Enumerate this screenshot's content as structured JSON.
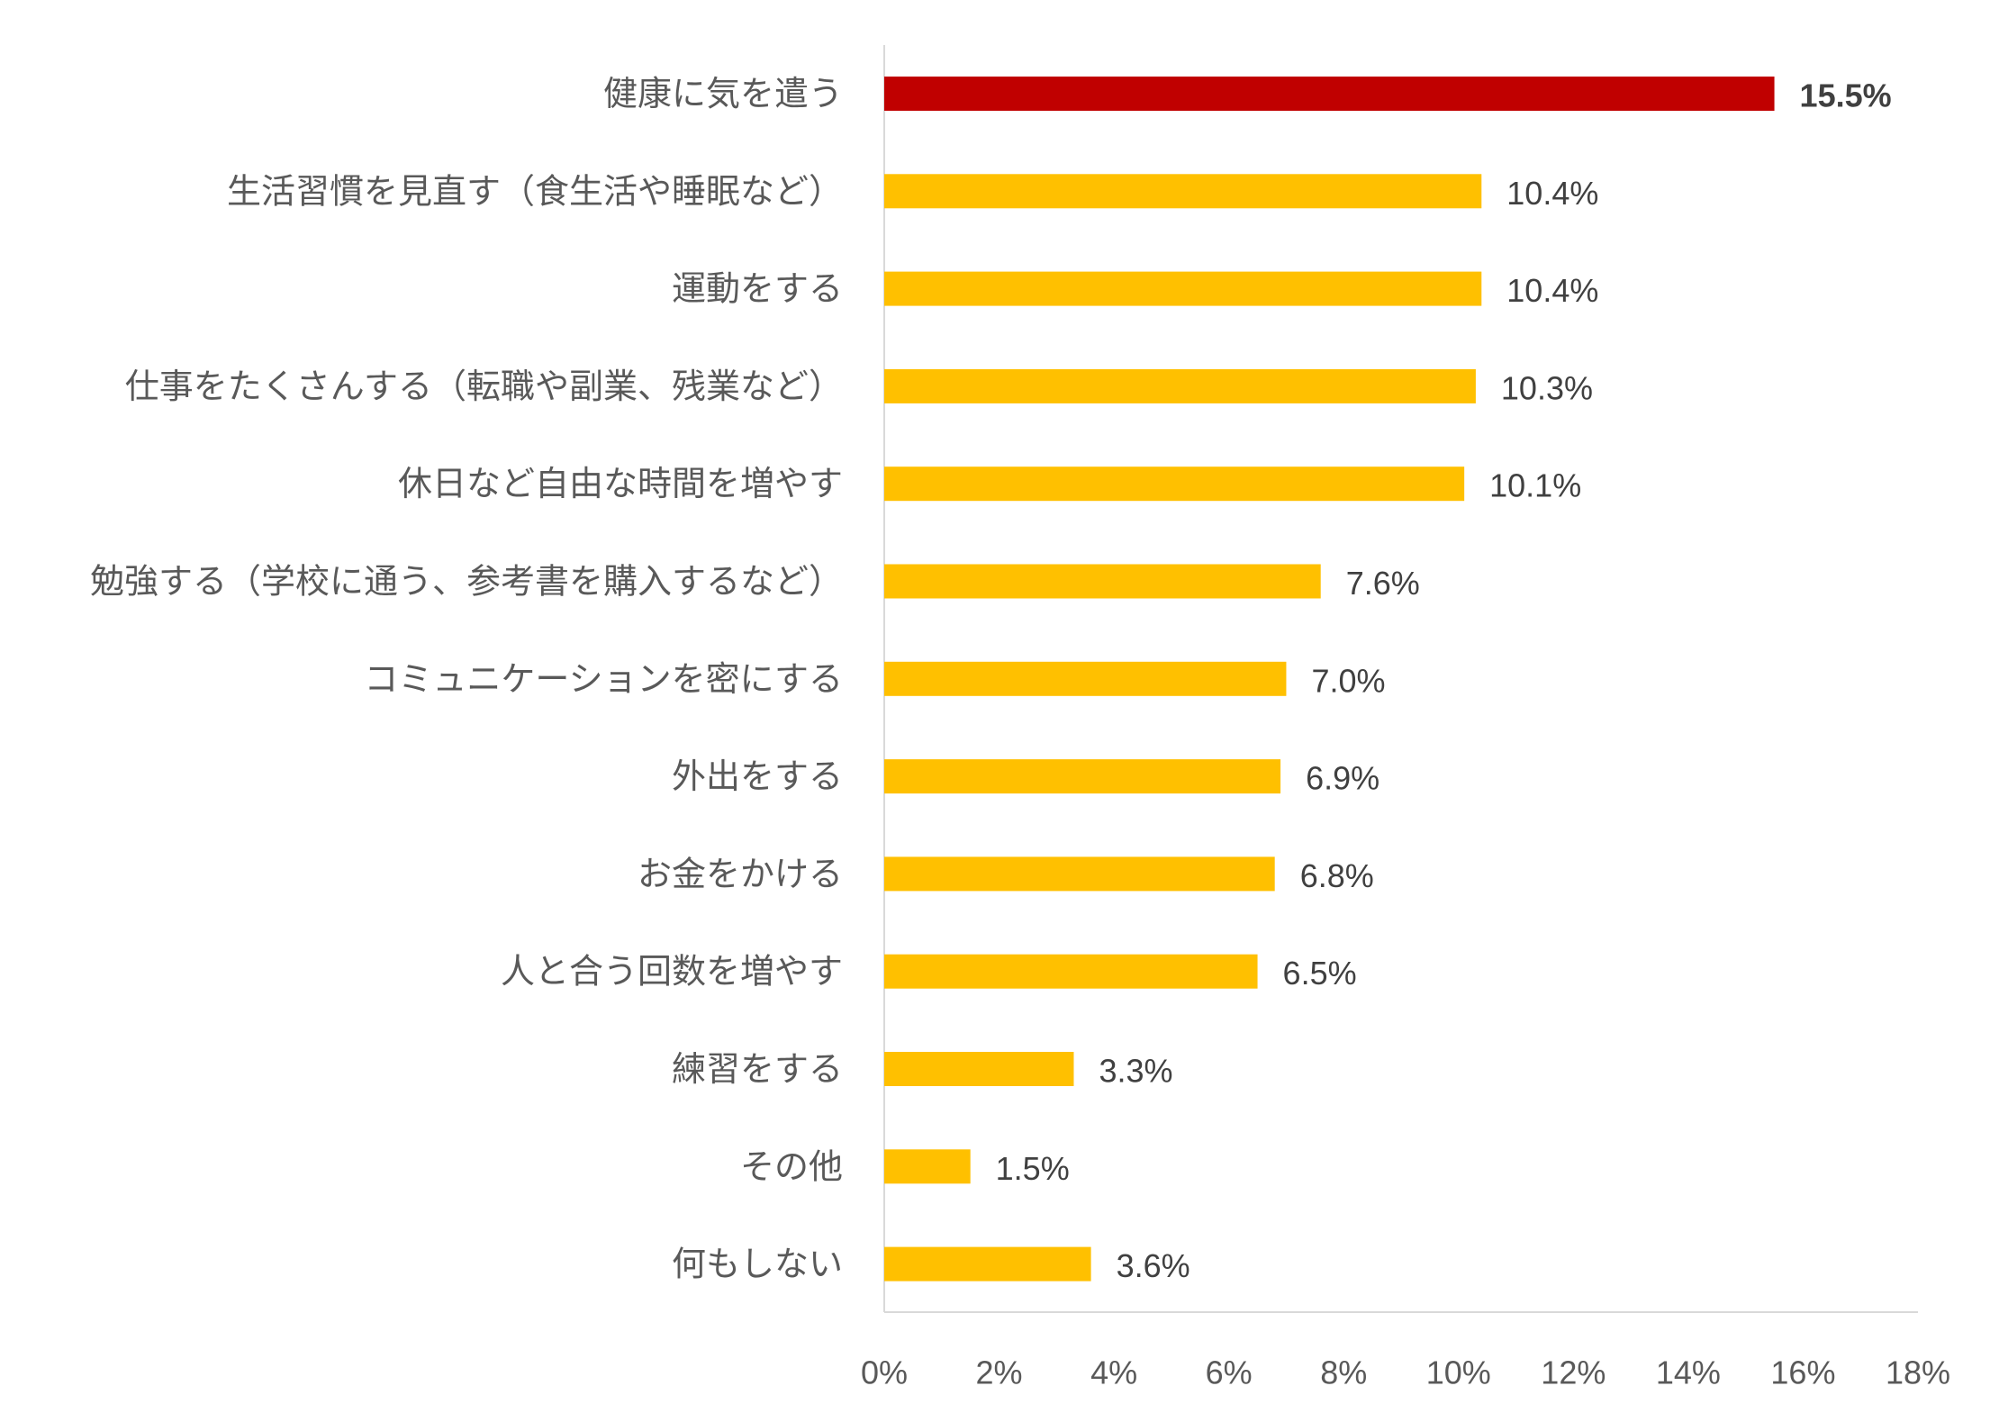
{
  "chart_data": {
    "type": "bar",
    "orientation": "horizontal",
    "categories": [
      "健康に気を遣う",
      "生活習慣を見直す（食生活や睡眠など）",
      "運動をする",
      "仕事をたくさんする（転職や副業、残業など）",
      "休日など自由な時間を増やす",
      "勉強する（学校に通う、参考書を購入するなど）",
      "コミュニケーションを密にする",
      "外出をする",
      "お金をかける",
      "人と合う回数を増やす",
      "練習をする",
      "その他",
      "何もしない"
    ],
    "values": [
      15.5,
      10.4,
      10.4,
      10.3,
      10.1,
      7.6,
      7.0,
      6.9,
      6.8,
      6.5,
      3.3,
      1.5,
      3.6
    ],
    "value_labels": [
      "15.5%",
      "10.4%",
      "10.4%",
      "10.3%",
      "10.1%",
      "7.6%",
      "7.0%",
      "6.9%",
      "6.8%",
      "6.5%",
      "3.3%",
      "1.5%",
      "3.6%"
    ],
    "xlim": [
      0,
      18
    ],
    "xticks": [
      0,
      2,
      4,
      6,
      8,
      10,
      12,
      14,
      16,
      18
    ],
    "xtick_labels": [
      "0%",
      "2%",
      "4%",
      "6%",
      "8%",
      "10%",
      "12%",
      "14%",
      "16%",
      "18%"
    ],
    "highlight_index": 0,
    "colors": {
      "bar": "#FFC000",
      "highlight": "#C00000",
      "axis": "#D9D9D9",
      "label": "#595959",
      "value": "#404040"
    },
    "grid": false,
    "legend": "none"
  }
}
